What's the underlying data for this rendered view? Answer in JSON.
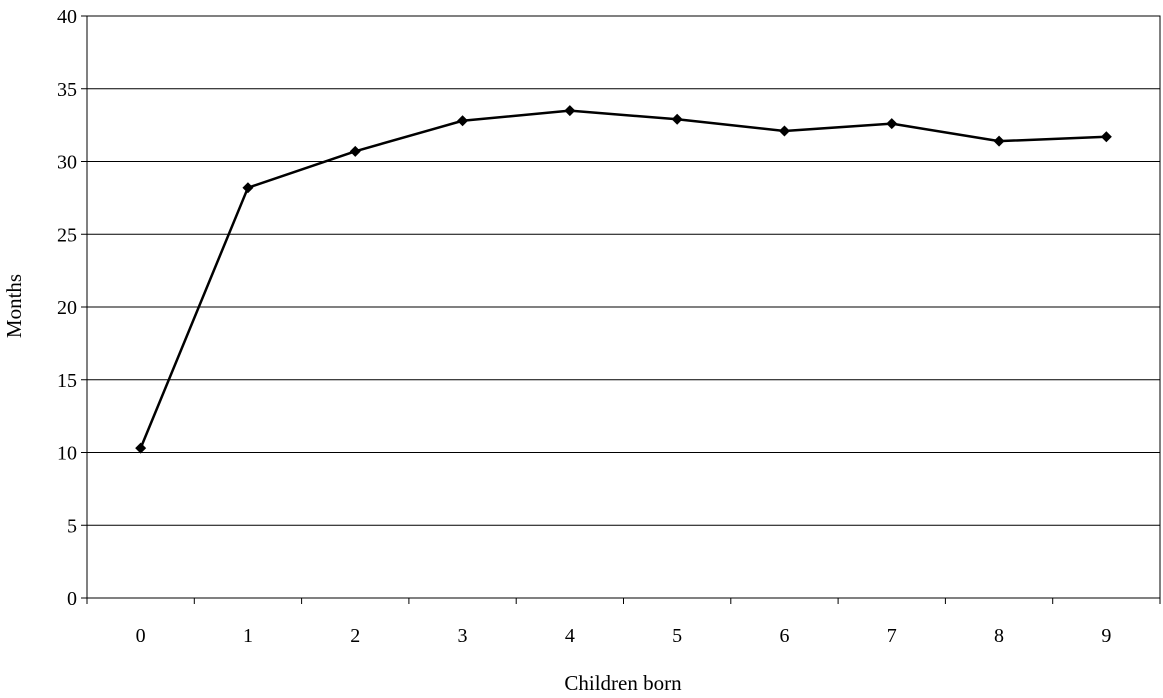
{
  "chart_data": {
    "type": "line",
    "title": "",
    "xlabel": "Children born",
    "ylabel": "Months",
    "categories": [
      "0",
      "1",
      "2",
      "3",
      "4",
      "5",
      "6",
      "7",
      "8",
      "9"
    ],
    "ylim": [
      0,
      40
    ],
    "yticks": [
      0,
      5,
      10,
      15,
      20,
      25,
      30,
      35,
      40
    ],
    "grid": true,
    "legend": "none",
    "series": [
      {
        "values": [
          10.3,
          28.2,
          30.7,
          32.8,
          33.5,
          32.9,
          32.1,
          32.6,
          31.4,
          31.7
        ],
        "color": "#000000",
        "marker": "diamond"
      }
    ]
  }
}
